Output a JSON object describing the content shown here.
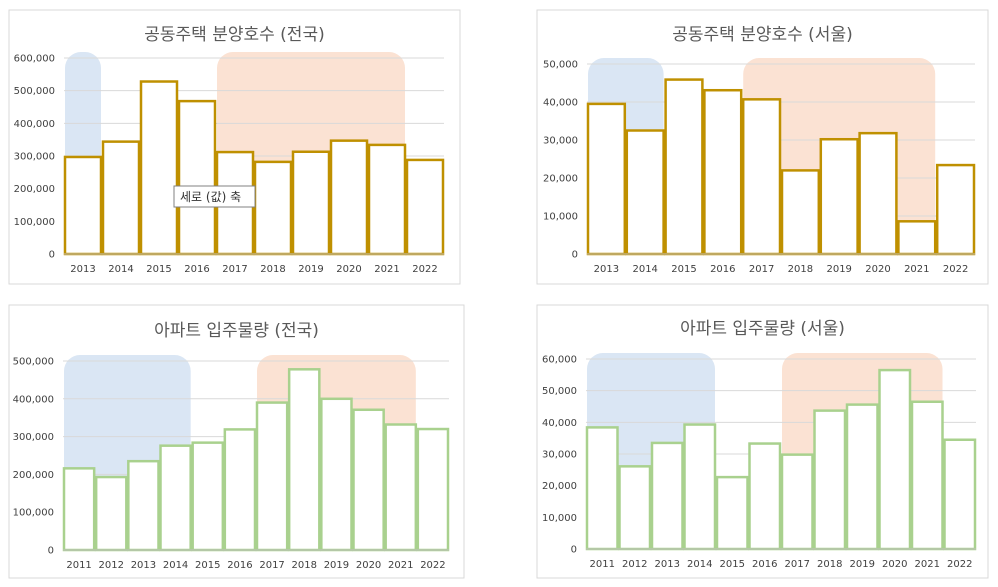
{
  "tooltip": {
    "text": "세로 (값)  축"
  },
  "chart_data": [
    {
      "type": "bar",
      "title": "공동주택 분양호수 (전국)",
      "categories": [
        "2013",
        "2014",
        "2015",
        "2016",
        "2017",
        "2018",
        "2019",
        "2020",
        "2021",
        "2022"
      ],
      "values": [
        297000,
        344000,
        528000,
        468000,
        312000,
        282000,
        313000,
        347000,
        334000,
        288000
      ],
      "ylim": [
        0,
        600000
      ],
      "yticks": [
        0,
        100000,
        200000,
        300000,
        400000,
        500000,
        600000
      ],
      "bar_color": "#bf9000",
      "grid": true,
      "highlights": [
        {
          "from": "2013",
          "to": "2013",
          "color": "#dae6f4"
        },
        {
          "from": "2017",
          "to": "2021",
          "color": "#fbe2d3"
        }
      ]
    },
    {
      "type": "bar",
      "title": "공동주택 분양호수 (서울)",
      "categories": [
        "2013",
        "2014",
        "2015",
        "2016",
        "2017",
        "2018",
        "2019",
        "2020",
        "2021",
        "2022"
      ],
      "values": [
        39500,
        32500,
        45900,
        43100,
        40700,
        22000,
        30200,
        31800,
        8600,
        23400
      ],
      "ylim": [
        0,
        50000
      ],
      "yticks": [
        0,
        10000,
        20000,
        30000,
        40000,
        50000
      ],
      "bar_color": "#bf9000",
      "grid": true,
      "highlights": [
        {
          "from": "2013",
          "to": "2014",
          "color": "#dae6f4"
        },
        {
          "from": "2017",
          "to": "2021",
          "color": "#fbe2d3"
        }
      ]
    },
    {
      "type": "bar",
      "title": "아파트 입주물량 (전국)",
      "categories": [
        "2011",
        "2012",
        "2013",
        "2014",
        "2015",
        "2016",
        "2017",
        "2018",
        "2019",
        "2020",
        "2021",
        "2022"
      ],
      "values": [
        216000,
        193000,
        235000,
        276000,
        284000,
        319000,
        390000,
        478000,
        400000,
        371000,
        332000,
        320000
      ],
      "ylim": [
        0,
        500000
      ],
      "yticks": [
        0,
        100000,
        200000,
        300000,
        400000,
        500000
      ],
      "bar_color": "#a9d18e",
      "grid": true,
      "highlights": [
        {
          "from": "2011",
          "to": "2014",
          "color": "#dae6f4"
        },
        {
          "from": "2017",
          "to": "2021",
          "color": "#fbe2d3"
        }
      ]
    },
    {
      "type": "bar",
      "title": "아파트 입주물량 (서울)",
      "categories": [
        "2011",
        "2012",
        "2013",
        "2014",
        "2015",
        "2016",
        "2017",
        "2018",
        "2019",
        "2020",
        "2021",
        "2022"
      ],
      "values": [
        38400,
        26100,
        33500,
        39300,
        22700,
        33300,
        29800,
        43700,
        45600,
        56500,
        46500,
        34500
      ],
      "ylim": [
        0,
        60000
      ],
      "yticks": [
        0,
        10000,
        20000,
        30000,
        40000,
        50000,
        60000
      ],
      "bar_color": "#a9d18e",
      "grid": true,
      "highlights": [
        {
          "from": "2011",
          "to": "2014",
          "color": "#dae6f4"
        },
        {
          "from": "2017",
          "to": "2021",
          "color": "#fbe2d3"
        }
      ]
    }
  ]
}
